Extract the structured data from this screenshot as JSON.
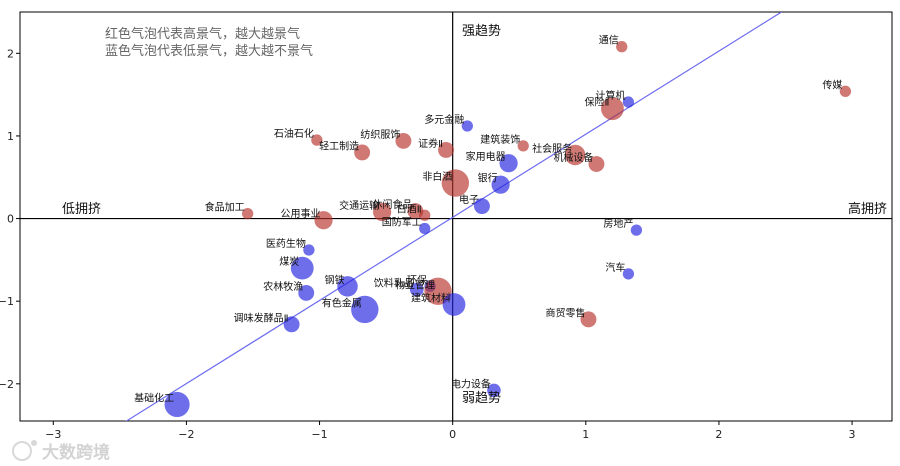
{
  "chart_data": {
    "type": "scatter",
    "title": "",
    "xlabel": "",
    "ylabel": "",
    "xlim": [
      -3.25,
      3.3
    ],
    "ylim": [
      -2.45,
      2.5
    ],
    "xticks": [
      -3,
      -2,
      -1,
      0,
      1,
      2,
      3
    ],
    "yticks": [
      -2,
      -1,
      0,
      1,
      2
    ],
    "grid": false,
    "quadrant_labels": {
      "top": "强趋势",
      "bottom": "弱趋势",
      "left": "低拥挤",
      "right": "高拥挤"
    },
    "notes": [
      "红色气泡代表高景气，越大越景气",
      "蓝色气泡代表低景气，越大越不景气"
    ],
    "trendline": {
      "x": [
        -2.5,
        2.47
      ],
      "y": [
        -2.5,
        2.5
      ]
    },
    "colors": {
      "high": "#b5302a",
      "low": "#2020e0",
      "line": "#6b6bf0"
    },
    "points": [
      {
        "name": "通信",
        "x": 1.27,
        "y": 2.08,
        "size": 3,
        "group": "high"
      },
      {
        "name": "传媒",
        "x": 2.95,
        "y": 1.54,
        "size": 3,
        "group": "high"
      },
      {
        "name": "计算机",
        "x": 1.32,
        "y": 1.41,
        "size": 3,
        "group": "low"
      },
      {
        "name": "保险Ⅱ",
        "x": 1.2,
        "y": 1.33,
        "size": 8,
        "group": "high"
      },
      {
        "name": "多元金融",
        "x": 0.11,
        "y": 1.12,
        "size": 3,
        "group": "low"
      },
      {
        "name": "石油石化",
        "x": -1.02,
        "y": 0.95,
        "size": 3,
        "group": "high"
      },
      {
        "name": "纺织服饰",
        "x": -0.37,
        "y": 0.94,
        "size": 5,
        "group": "high"
      },
      {
        "name": "建筑装饰",
        "x": 0.53,
        "y": 0.88,
        "size": 3,
        "group": "high"
      },
      {
        "name": "证券Ⅱ",
        "x": -0.05,
        "y": 0.83,
        "size": 5,
        "group": "high"
      },
      {
        "name": "轻工制造",
        "x": -0.68,
        "y": 0.8,
        "size": 5,
        "group": "high"
      },
      {
        "name": "社会服务",
        "x": 0.92,
        "y": 0.77,
        "size": 7,
        "group": "high"
      },
      {
        "name": "机械设备",
        "x": 1.08,
        "y": 0.66,
        "size": 5,
        "group": "high"
      },
      {
        "name": "家用电器",
        "x": 0.42,
        "y": 0.67,
        "size": 6,
        "group": "low"
      },
      {
        "name": "非白酒",
        "x": 0.02,
        "y": 0.43,
        "size": 10,
        "group": "high"
      },
      {
        "name": "银行",
        "x": 0.36,
        "y": 0.41,
        "size": 6,
        "group": "low"
      },
      {
        "name": "电子",
        "x": 0.22,
        "y": 0.15,
        "size": 5,
        "group": "low"
      },
      {
        "name": "食品加工",
        "x": -1.54,
        "y": 0.06,
        "size": 3,
        "group": "high"
      },
      {
        "name": "交通运输",
        "x": -0.53,
        "y": 0.08,
        "size": 6,
        "group": "high"
      },
      {
        "name": "休闲食品",
        "x": -0.28,
        "y": 0.09,
        "size": 5,
        "group": "high"
      },
      {
        "name": "白酒Ⅱ",
        "x": -0.21,
        "y": 0.04,
        "size": 3,
        "group": "high"
      },
      {
        "name": "公用事业",
        "x": -0.97,
        "y": -0.02,
        "size": 6,
        "group": "high"
      },
      {
        "name": "国防军工",
        "x": -0.21,
        "y": -0.12,
        "size": 3,
        "group": "low"
      },
      {
        "name": "房地产",
        "x": 1.38,
        "y": -0.14,
        "size": 3,
        "group": "low"
      },
      {
        "name": "医药生物",
        "x": -1.08,
        "y": -0.38,
        "size": 3,
        "group": "low"
      },
      {
        "name": "煤炭",
        "x": -1.13,
        "y": -0.6,
        "size": 8,
        "group": "low"
      },
      {
        "name": "汽车",
        "x": 1.32,
        "y": -0.67,
        "size": 3,
        "group": "low"
      },
      {
        "name": "钢铁",
        "x": -0.79,
        "y": -0.82,
        "size": 7,
        "group": "low"
      },
      {
        "name": "农林牧渔",
        "x": -1.1,
        "y": -0.9,
        "size": 5,
        "group": "low"
      },
      {
        "name": "环保",
        "x": -0.17,
        "y": -0.82,
        "size": 3,
        "group": "low"
      },
      {
        "name": "饮料乳品",
        "x": -0.27,
        "y": -0.86,
        "size": 4,
        "group": "low"
      },
      {
        "name": "物业管理",
        "x": -0.11,
        "y": -0.88,
        "size": 10,
        "group": "high"
      },
      {
        "name": "建筑材料",
        "x": 0.01,
        "y": -1.04,
        "size": 8,
        "group": "low"
      },
      {
        "name": "有色金属",
        "x": -0.66,
        "y": -1.1,
        "size": 10,
        "group": "low"
      },
      {
        "name": "商贸零售",
        "x": 1.02,
        "y": -1.22,
        "size": 5,
        "group": "high"
      },
      {
        "name": "调味发酵品Ⅱ",
        "x": -1.21,
        "y": -1.28,
        "size": 5,
        "group": "low"
      },
      {
        "name": "电力设备",
        "x": 0.31,
        "y": -2.08,
        "size": 4,
        "group": "low"
      },
      {
        "name": "基础化工",
        "x": -2.07,
        "y": -2.25,
        "size": 9,
        "group": "low"
      }
    ]
  },
  "watermark": "大数跨境"
}
